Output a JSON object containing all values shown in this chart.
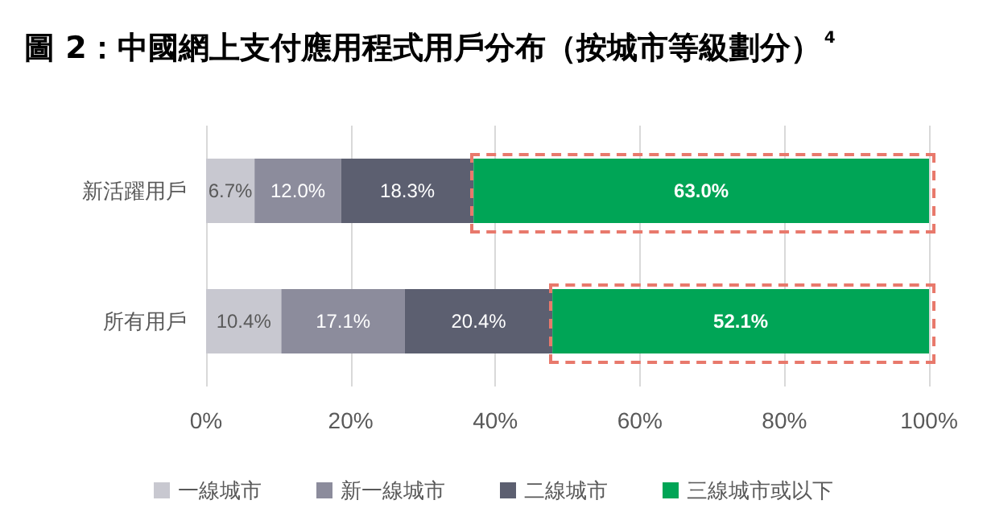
{
  "chart_data": {
    "type": "bar",
    "orientation": "horizontal",
    "stacked": true,
    "title": "圖 2：中國網上支付應用程式用戶分布（按城市等級劃分）$^{4}$",
    "categories": [
      "新活躍用戶",
      "所有用戶"
    ],
    "series": [
      {
        "name": "一線城市",
        "color": "#c8c8d0",
        "values": [
          6.7,
          10.4
        ],
        "value_labels": [
          "6.7%",
          "10.4%"
        ]
      },
      {
        "name": "新一線城市",
        "color": "#8c8c9c",
        "values": [
          12.0,
          17.1
        ],
        "value_labels": [
          "12.0%",
          "17.1%"
        ]
      },
      {
        "name": "二線城市",
        "color": "#5c5f70",
        "values": [
          18.3,
          20.4
        ],
        "value_labels": [
          "18.3%",
          "20.4%"
        ]
      },
      {
        "name": "三線城市或以下",
        "color": "#00a556",
        "values": [
          63.0,
          52.1
        ],
        "value_labels": [
          "63.0%",
          "52.1%"
        ]
      }
    ],
    "xlim": [
      0,
      100
    ],
    "xticks": [
      {
        "value": 0,
        "label": "0%"
      },
      {
        "value": 20,
        "label": "20%"
      },
      {
        "value": 40,
        "label": "40%"
      },
      {
        "value": 60,
        "label": "60%"
      },
      {
        "value": 80,
        "label": "80%"
      },
      {
        "value": 100,
        "label": "100%"
      }
    ],
    "grid": "x",
    "legend": "bottom"
  }
}
